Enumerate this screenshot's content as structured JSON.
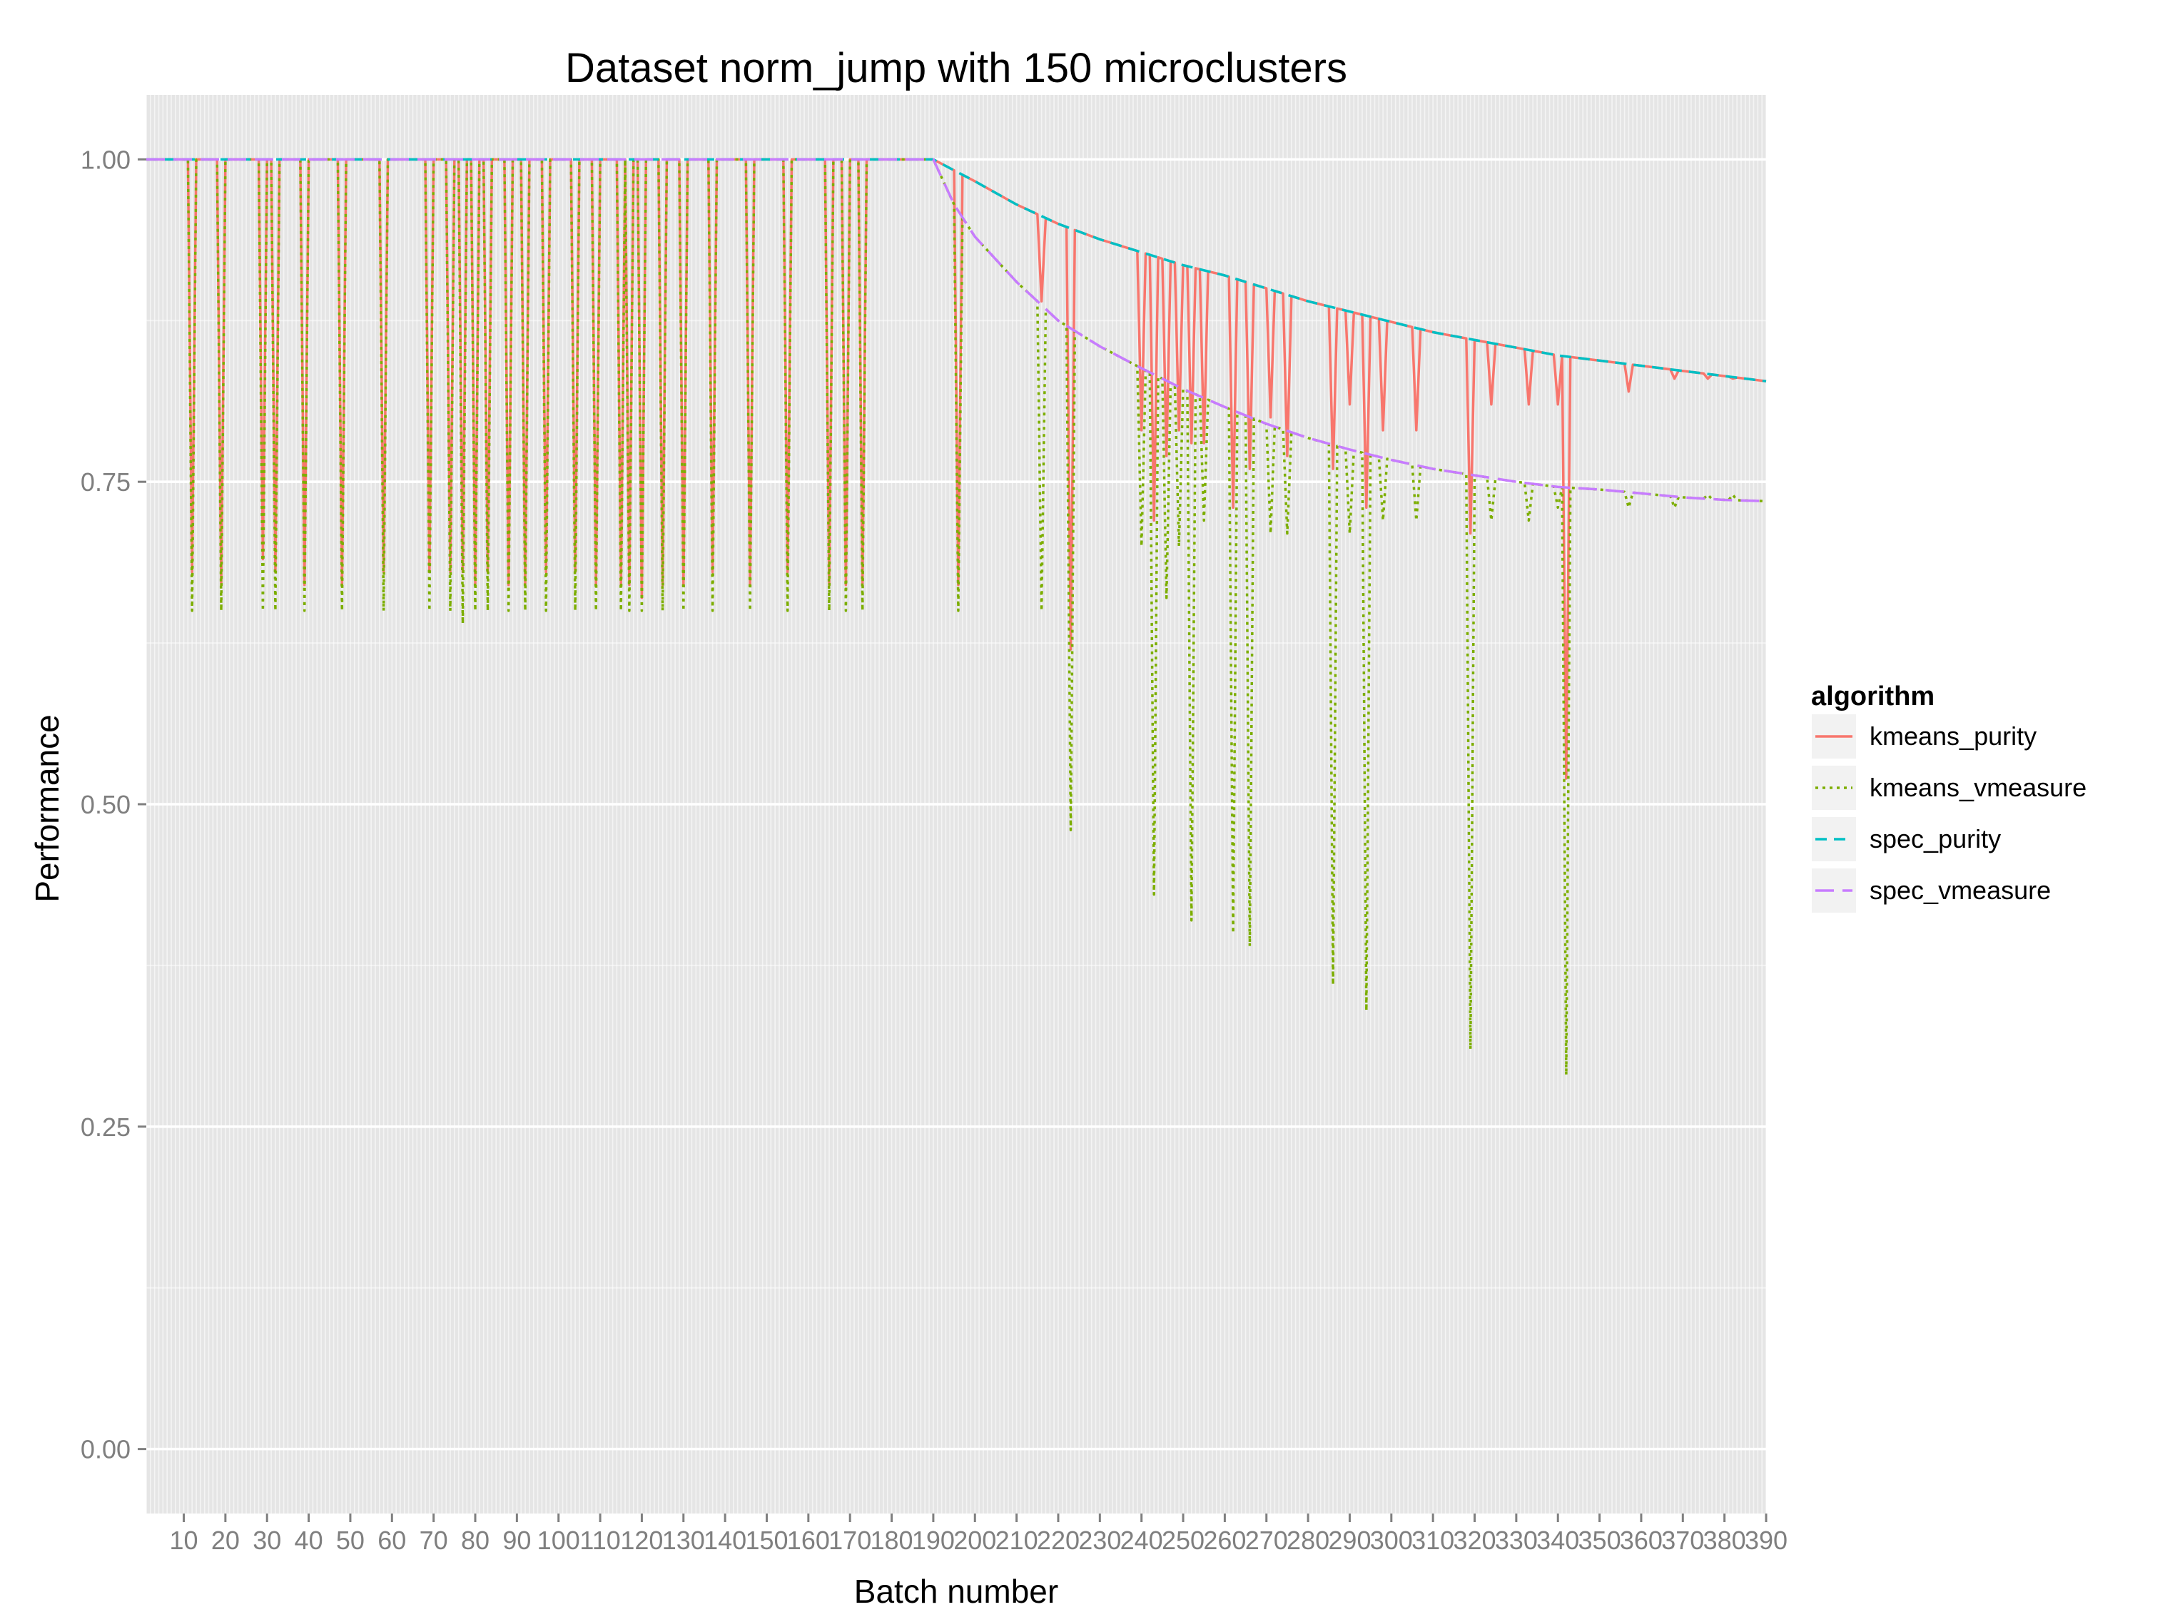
{
  "chart_data": {
    "type": "line",
    "title": "Dataset norm_jump with 150 microclusters",
    "xlabel": "Batch number",
    "ylabel": "Performance",
    "xlim": [
      1,
      390
    ],
    "ylim": [
      -0.05,
      1.05
    ],
    "x_ticks": [
      "10",
      "20",
      "30",
      "40",
      "50",
      "60",
      "70",
      "80",
      "90",
      "100",
      "110",
      "120",
      "130",
      "140",
      "150",
      "160",
      "170",
      "180",
      "190",
      "200",
      "210",
      "220",
      "230",
      "240",
      "250",
      "260",
      "270",
      "280",
      "290",
      "300",
      "310",
      "320",
      "330",
      "340",
      "350",
      "360",
      "370",
      "380",
      "390"
    ],
    "y_ticks": [
      "0.00",
      "0.25",
      "0.50",
      "0.75",
      "1.00"
    ],
    "grid": true,
    "legend": {
      "title": "algorithm",
      "position": "right"
    },
    "dip_schedule": {
      "kmeans_purity": [
        [
          12,
          0.68
        ],
        [
          19,
          0.67
        ],
        [
          29,
          0.69
        ],
        [
          32,
          0.68
        ],
        [
          39,
          0.67
        ],
        [
          48,
          0.67
        ],
        [
          58,
          0.68
        ],
        [
          69,
          0.68
        ],
        [
          74,
          0.68
        ],
        [
          77,
          0.68
        ],
        [
          80,
          0.67
        ],
        [
          83,
          0.68
        ],
        [
          88,
          0.67
        ],
        [
          92,
          0.67
        ],
        [
          97,
          0.68
        ],
        [
          104,
          0.68
        ],
        [
          109,
          0.67
        ],
        [
          115,
          0.67
        ],
        [
          117,
          0.67
        ],
        [
          120,
          0.66
        ],
        [
          125,
          0.67
        ],
        [
          130,
          0.67
        ],
        [
          137,
          0.68
        ],
        [
          146,
          0.67
        ],
        [
          155,
          0.68
        ],
        [
          165,
          0.67
        ],
        [
          169,
          0.67
        ],
        [
          173,
          0.67
        ],
        [
          196,
          0.67
        ],
        [
          216,
          0.89
        ],
        [
          223,
          0.62
        ],
        [
          240,
          0.79
        ],
        [
          243,
          0.72
        ],
        [
          246,
          0.77
        ],
        [
          249,
          0.79
        ],
        [
          252,
          0.78
        ],
        [
          255,
          0.78
        ],
        [
          262,
          0.73
        ],
        [
          266,
          0.76
        ],
        [
          271,
          0.8
        ],
        [
          275,
          0.77
        ],
        [
          286,
          0.76
        ],
        [
          290,
          0.81
        ],
        [
          294,
          0.73
        ],
        [
          298,
          0.79
        ],
        [
          306,
          0.79
        ],
        [
          319,
          0.71
        ],
        [
          324,
          0.81
        ],
        [
          333,
          0.81
        ],
        [
          340,
          0.81
        ],
        [
          342,
          0.52
        ],
        [
          357,
          0.82
        ],
        [
          368,
          0.83
        ],
        [
          376,
          0.83
        ],
        [
          382,
          0.83
        ]
      ],
      "kmeans_vmeasure": [
        [
          12,
          0.65
        ],
        [
          19,
          0.65
        ],
        [
          29,
          0.65
        ],
        [
          32,
          0.65
        ],
        [
          39,
          0.65
        ],
        [
          48,
          0.65
        ],
        [
          58,
          0.65
        ],
        [
          69,
          0.65
        ],
        [
          74,
          0.65
        ],
        [
          77,
          0.64
        ],
        [
          80,
          0.65
        ],
        [
          83,
          0.65
        ],
        [
          88,
          0.65
        ],
        [
          92,
          0.65
        ],
        [
          97,
          0.65
        ],
        [
          104,
          0.65
        ],
        [
          109,
          0.65
        ],
        [
          115,
          0.65
        ],
        [
          117,
          0.65
        ],
        [
          120,
          0.65
        ],
        [
          125,
          0.65
        ],
        [
          130,
          0.65
        ],
        [
          137,
          0.65
        ],
        [
          146,
          0.65
        ],
        [
          155,
          0.65
        ],
        [
          165,
          0.65
        ],
        [
          169,
          0.65
        ],
        [
          173,
          0.65
        ],
        [
          196,
          0.65
        ],
        [
          216,
          0.65
        ],
        [
          223,
          0.48
        ],
        [
          240,
          0.7
        ],
        [
          243,
          0.43
        ],
        [
          246,
          0.66
        ],
        [
          249,
          0.7
        ],
        [
          252,
          0.41
        ],
        [
          255,
          0.72
        ],
        [
          262,
          0.4
        ],
        [
          266,
          0.39
        ],
        [
          271,
          0.71
        ],
        [
          275,
          0.71
        ],
        [
          286,
          0.36
        ],
        [
          290,
          0.71
        ],
        [
          294,
          0.34
        ],
        [
          298,
          0.72
        ],
        [
          306,
          0.72
        ],
        [
          319,
          0.31
        ],
        [
          324,
          0.72
        ],
        [
          333,
          0.72
        ],
        [
          340,
          0.73
        ],
        [
          342,
          0.29
        ],
        [
          357,
          0.73
        ],
        [
          368,
          0.73
        ],
        [
          376,
          0.74
        ],
        [
          382,
          0.74
        ]
      ]
    },
    "series": [
      {
        "name": "kmeans_purity",
        "color": "#F8766D",
        "dash": "solid"
      },
      {
        "name": "kmeans_vmeasure",
        "color": "#7CAE00",
        "dash": "dotted"
      },
      {
        "name": "spec_purity",
        "color": "#00BFC4",
        "dash": "dashed",
        "x": [
          1,
          190,
          200,
          210,
          220,
          230,
          240,
          250,
          260,
          270,
          280,
          290,
          300,
          310,
          320,
          330,
          340,
          350,
          360,
          370,
          380,
          390
        ],
        "y": [
          1.0,
          1.0,
          0.983,
          0.965,
          0.95,
          0.938,
          0.928,
          0.918,
          0.91,
          0.9,
          0.89,
          0.882,
          0.874,
          0.866,
          0.86,
          0.854,
          0.848,
          0.844,
          0.84,
          0.836,
          0.832,
          0.828
        ]
      },
      {
        "name": "spec_vmeasure",
        "color": "#C77CFF",
        "dash": "longdash",
        "x": [
          1,
          190,
          195,
          200,
          210,
          220,
          230,
          240,
          250,
          260,
          270,
          280,
          290,
          300,
          310,
          320,
          330,
          340,
          350,
          360,
          370,
          380,
          390
        ],
        "y": [
          1.0,
          1.0,
          0.965,
          0.94,
          0.905,
          0.875,
          0.855,
          0.838,
          0.822,
          0.808,
          0.795,
          0.784,
          0.775,
          0.767,
          0.76,
          0.755,
          0.75,
          0.746,
          0.744,
          0.741,
          0.738,
          0.736,
          0.735
        ]
      }
    ]
  }
}
